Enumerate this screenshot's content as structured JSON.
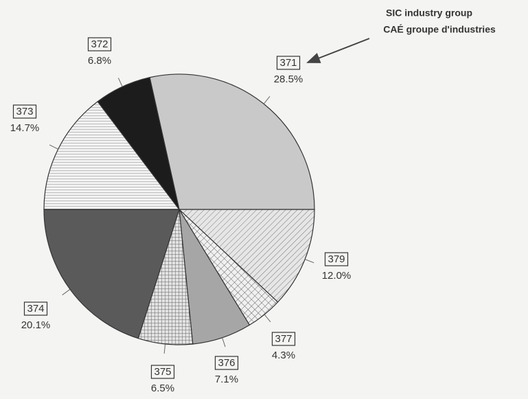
{
  "chart_data": {
    "type": "pie",
    "annotations": [
      "SIC industry group",
      "CAÉ groupe d'industries"
    ],
    "categories": [
      "371",
      "379",
      "377",
      "376",
      "375",
      "374",
      "373",
      "372"
    ],
    "values": [
      28.5,
      12.0,
      4.3,
      7.1,
      6.5,
      20.1,
      14.7,
      6.8
    ],
    "value_labels": [
      "28.5%",
      "12.0%",
      "4.3%",
      "7.1%",
      "6.5%",
      "20.1%",
      "14.7%",
      "6.8%"
    ],
    "colors": [
      "#c9c9c9",
      "#e6e6e6",
      "#ececec",
      "#a6a6a6",
      "#dcdcdc",
      "#5a5a5a",
      "#eeeeee",
      "#1c1c1c"
    ]
  }
}
